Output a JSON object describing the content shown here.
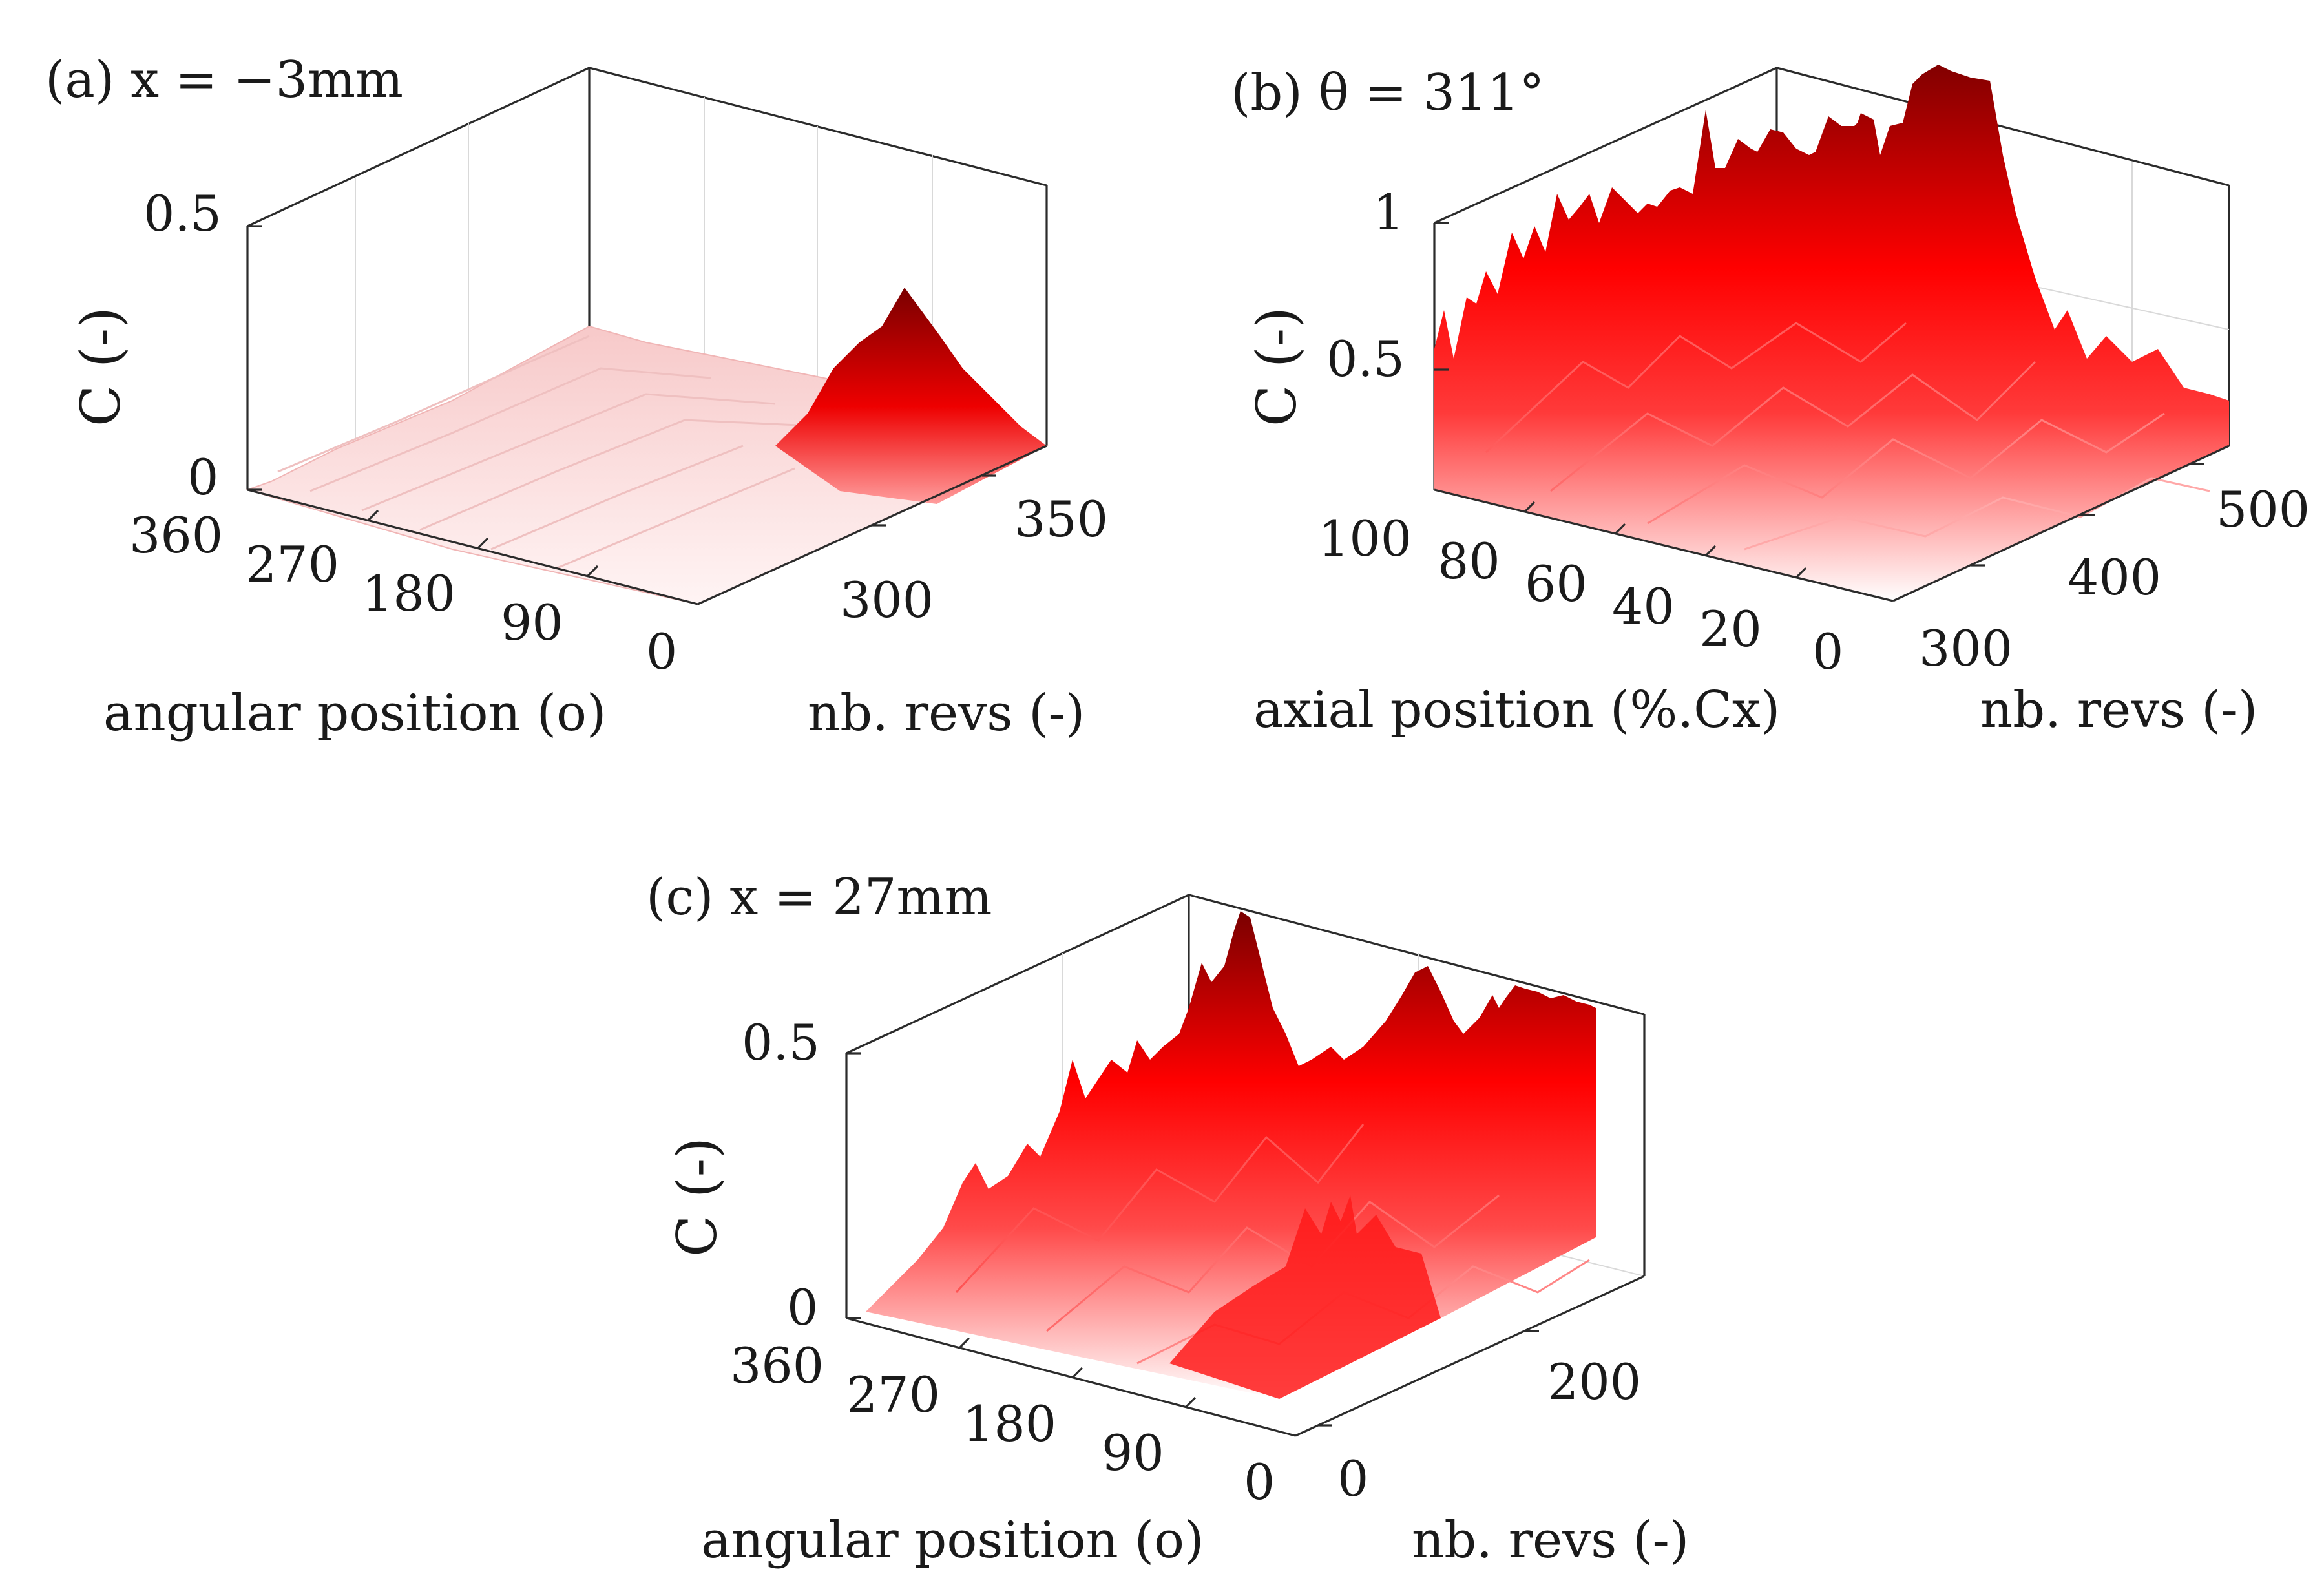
{
  "figure": {
    "panels": [
      {
        "id": "a",
        "label": "(a) x = −3mm",
        "z_label": "C (-)",
        "x_label": "angular position (o)",
        "y_label": "nb. revs (-)",
        "z_ticks": [
          "0",
          "0.5"
        ],
        "x_ticks": [
          "360",
          "270",
          "180",
          "90",
          "0"
        ],
        "y_ticks": [
          "300",
          "350"
        ]
      },
      {
        "id": "b",
        "label": "(b) θ = 311°",
        "z_label": "C (-)",
        "x_label": "axial position (%.Cx)",
        "y_label": "nb. revs (-)",
        "z_ticks": [
          "0.5",
          "1"
        ],
        "x_ticks": [
          "100",
          "80",
          "60",
          "40",
          "20",
          "0"
        ],
        "y_ticks": [
          "300",
          "400",
          "500"
        ]
      },
      {
        "id": "c",
        "label": "(c) x = 27mm",
        "z_label": "C (-)",
        "x_label": "angular position (o)",
        "y_label": "nb. revs (-)",
        "z_ticks": [
          "0",
          "0.5"
        ],
        "x_ticks": [
          "360",
          "270",
          "180",
          "90",
          "0"
        ],
        "y_ticks": [
          "0",
          "200"
        ]
      }
    ]
  },
  "chart_data": [
    {
      "type": "surface",
      "panel": "a",
      "title": "(a) x = −3mm",
      "xlabel": "angular position (o)",
      "ylabel": "nb. revs (-)",
      "zlabel": "C (-)",
      "xlim": [
        0,
        360
      ],
      "ylim": [
        270,
        370
      ],
      "zlim": [
        0,
        0.5
      ],
      "x_ticks": [
        360,
        270,
        180,
        90,
        0
      ],
      "y_ticks": [
        300,
        350
      ],
      "z_ticks": [
        0,
        0.5
      ],
      "colormap": [
        "#ffffff",
        "#ff0000",
        "#800000"
      ],
      "features": "mostly near 0.05, single peak about 0.3 near angular 0-30 and about 345 revs"
    },
    {
      "type": "surface",
      "panel": "b",
      "title": "(b) θ = 311°",
      "xlabel": "axial position (%.Cx)",
      "ylabel": "nb. revs (-)",
      "zlabel": "C (-)",
      "xlim": [
        0,
        100
      ],
      "ylim": [
        280,
        540
      ],
      "zlim": [
        0,
        1
      ],
      "x_ticks": [
        100,
        80,
        60,
        40,
        20,
        0
      ],
      "y_ticks": [
        300,
        400,
        500
      ],
      "z_ticks": [
        0.5,
        1
      ],
      "colormap": [
        "#ffffff",
        "#ff0000",
        "#800000"
      ],
      "features": "high (0.6-1) near 60-100 %.Cx, saturating at 1 in late revs; low toward 0 %.Cx"
    },
    {
      "type": "surface",
      "panel": "c",
      "title": "(c) x = 27mm",
      "xlabel": "angular position (o)",
      "ylabel": "nb. revs (-)",
      "zlabel": "C (-)",
      "xlim": [
        0,
        360
      ],
      "ylim": [
        -20,
        300
      ],
      "zlim": [
        0,
        0.5
      ],
      "x_ticks": [
        360,
        270,
        180,
        90,
        0
      ],
      "y_ticks": [
        0,
        200
      ],
      "z_ticks": [
        0,
        0.5
      ],
      "colormap": [
        "#ffffff",
        "#ff0000",
        "#800000"
      ],
      "features": "spiky surface, rising with revs; peaks up to about 0.55 near 150-300 revs"
    }
  ]
}
